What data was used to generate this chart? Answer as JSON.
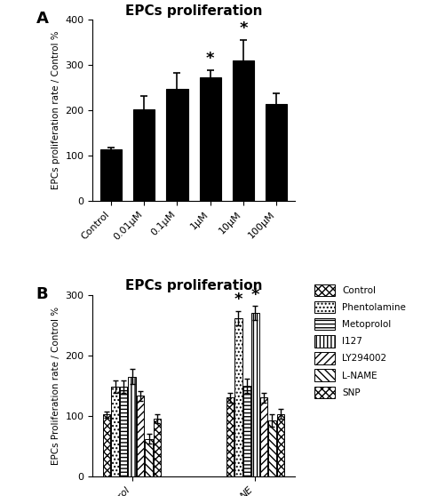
{
  "panel_A": {
    "title": "EPCs proliferation",
    "ylabel": "EPCs proliferation rate / Control %",
    "categories": [
      "Control",
      "0.01μM",
      "0.1μM",
      "1μM",
      "10μM",
      "100μM"
    ],
    "values": [
      113,
      203,
      248,
      273,
      310,
      215
    ],
    "errors": [
      5,
      28,
      35,
      15,
      45,
      22
    ],
    "sig_stars": [
      false,
      false,
      false,
      true,
      true,
      false
    ],
    "ylim": [
      0,
      400
    ],
    "yticks": [
      0,
      100,
      200,
      300,
      400
    ],
    "bar_color": "#000000",
    "label_A": "A"
  },
  "panel_B": {
    "title": "EPCs proliferation",
    "ylabel": "EPCs Proliferation rate / Control %",
    "groups": [
      "Control",
      "NE"
    ],
    "legend_labels": [
      "Control",
      "Phentolamine",
      "Metoprolol",
      "I127",
      "LY294002",
      "L-NAME",
      "SNP"
    ],
    "values_control": [
      102,
      148,
      148,
      165,
      133,
      62,
      95
    ],
    "values_NE": [
      130,
      262,
      150,
      270,
      130,
      92,
      103
    ],
    "errors_control": [
      5,
      10,
      10,
      12,
      8,
      8,
      7
    ],
    "errors_NE": [
      8,
      12,
      12,
      12,
      8,
      10,
      8
    ],
    "sig_control": [
      false,
      false,
      false,
      false,
      false,
      false,
      false
    ],
    "sig_NE": [
      false,
      true,
      false,
      true,
      false,
      false,
      false
    ],
    "ylim": [
      0,
      300
    ],
    "yticks": [
      0,
      100,
      200,
      300
    ],
    "label_B": "B",
    "n_series": 7,
    "hatch_patterns": [
      "xxxx",
      "....",
      "----",
      "||||",
      "////",
      "\\\\\\\\",
      "xxxx"
    ],
    "group_positions": [
      0.35,
      1.85
    ]
  }
}
